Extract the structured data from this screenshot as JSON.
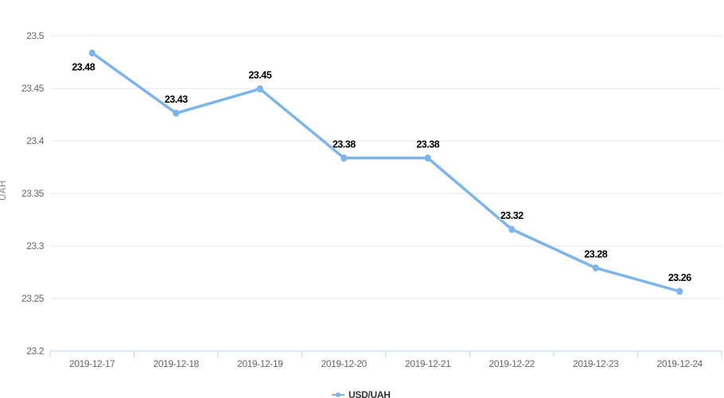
{
  "chart_data": {
    "type": "line",
    "title": "",
    "xlabel": "",
    "ylabel": "UAH",
    "categories": [
      "2019-12-17",
      "2019-12-18",
      "2019-12-19",
      "2019-12-20",
      "2019-12-21",
      "2019-12-22",
      "2019-12-23",
      "2019-12-24"
    ],
    "series": [
      {
        "name": "USD/UAH",
        "color": "#7cb5ec",
        "values": [
          23.4837,
          23.4264,
          23.4495,
          23.3837,
          23.3837,
          23.3158,
          23.2791,
          23.2568
        ],
        "point_labels": [
          "23.48",
          "23.43",
          "23.45",
          "23.38",
          "23.38",
          "23.32",
          "23.28",
          "23.26"
        ]
      }
    ],
    "yticks": {
      "values": [
        23.2,
        23.25,
        23.3,
        23.35,
        23.4,
        23.45,
        23.5
      ],
      "labels": [
        "23.2",
        "23.25",
        "23.3",
        "23.35",
        "23.4",
        "23.45",
        "23.5"
      ]
    },
    "ylim": [
      23.2,
      23.5
    ],
    "grid": true,
    "legend_position": "bottom-center",
    "colors": {
      "line": "#7cb5ec",
      "marker": "#7cb5ec",
      "gridline": "#e6e6e6",
      "axis_line": "#c0d0e0",
      "axis_label": "#666666",
      "data_label": "#000000",
      "legend_text": "#333333",
      "background": "#ffffff"
    }
  }
}
